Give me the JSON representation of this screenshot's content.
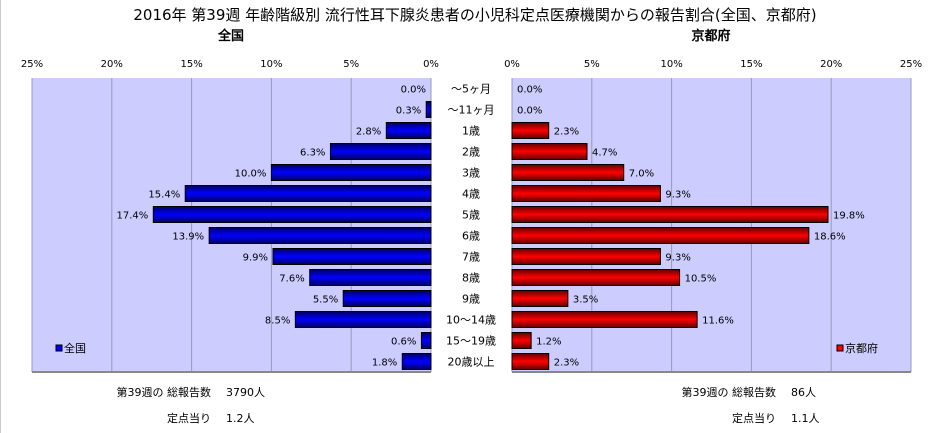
{
  "chart_data": {
    "type": "bar",
    "title": "2016年 第39週 年齢階級別 流行性耳下腺炎患者の小児科定点医療機関からの報告割合(全国、京都府)",
    "categories": [
      "～5ヶ月",
      "～11ヶ月",
      "1歳",
      "2歳",
      "3歳",
      "4歳",
      "5歳",
      "6歳",
      "7歳",
      "8歳",
      "9歳",
      "10～14歳",
      "15～19歳",
      "20歳以上"
    ],
    "xlim": [
      0,
      25
    ],
    "ticks": [
      "0%",
      "5%",
      "10%",
      "15%",
      "20%",
      "25%"
    ],
    "tick_values": [
      0,
      5,
      10,
      15,
      20,
      25
    ],
    "grid": true,
    "series": [
      {
        "name": "全国",
        "panel_title": "全国",
        "color": "#0000ff",
        "legend": "bottom-left",
        "values": [
          0.0,
          0.3,
          2.8,
          6.3,
          10.0,
          15.4,
          17.4,
          13.9,
          9.9,
          7.6,
          5.5,
          8.5,
          0.6,
          1.8
        ],
        "labels": [
          "0.0%",
          "0.3%",
          "2.8%",
          "6.3%",
          "10.0%",
          "15.4%",
          "17.4%",
          "13.9%",
          "9.9%",
          "7.6%",
          "5.5%",
          "8.5%",
          "0.6%",
          "1.8%"
        ]
      },
      {
        "name": "京都府",
        "panel_title": "京都府",
        "color": "#ff0000",
        "legend": "bottom-right",
        "values": [
          0.0,
          0.0,
          2.3,
          4.7,
          7.0,
          9.3,
          19.8,
          18.6,
          9.3,
          10.5,
          3.5,
          11.6,
          1.2,
          2.3
        ],
        "labels": [
          "0.0%",
          "0.0%",
          "2.3%",
          "4.7%",
          "7.0%",
          "9.3%",
          "19.8%",
          "18.6%",
          "9.3%",
          "10.5%",
          "3.5%",
          "11.6%",
          "1.2%",
          "2.3%"
        ]
      }
    ]
  },
  "summary": {
    "national": {
      "total_label": "第39週の 総報告数",
      "total_value": "3790人",
      "per_label": "定点当り",
      "per_value": "1.2人"
    },
    "kyoto": {
      "total_label": "第39週の 総報告数",
      "total_value": "86人",
      "per_label": "定点当り",
      "per_value": "1.1人"
    }
  }
}
